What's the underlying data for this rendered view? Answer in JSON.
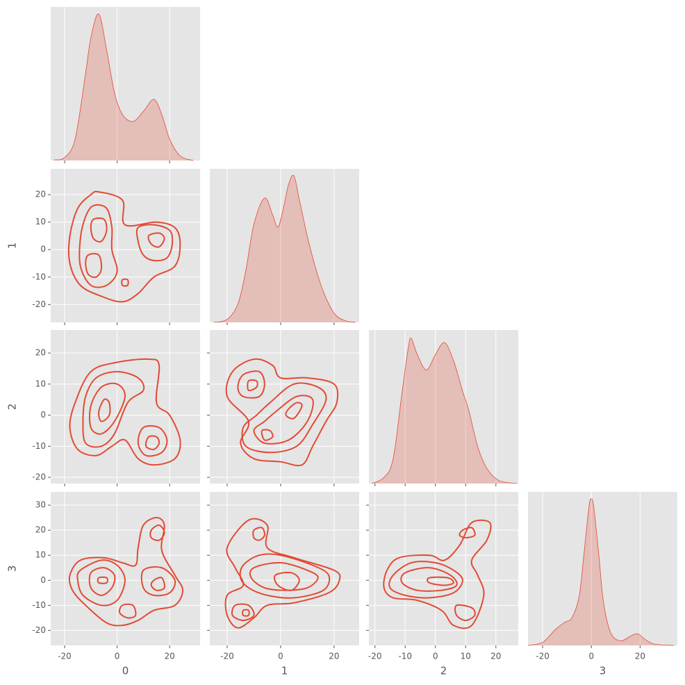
{
  "chart_data": {
    "type": "pairplot",
    "color": "#e24a33",
    "grid": true,
    "variables": [
      {
        "label": "0",
        "lim": [
          -25.3,
          31.6
        ],
        "xticks": [
          -20,
          0,
          20
        ]
      },
      {
        "label": "1",
        "lim": [
          -26.5,
          29.4
        ],
        "xticks": [
          -20,
          0,
          20
        ],
        "yticks": [
          -20,
          -10,
          0,
          10,
          20
        ]
      },
      {
        "label": "2",
        "lim": [
          -22,
          27.4
        ],
        "xticks": [
          -20,
          -10,
          0,
          10,
          20
        ],
        "yticks": [
          -20,
          -10,
          0,
          10,
          20
        ]
      },
      {
        "label": "3",
        "lim": [
          -26,
          35.3
        ],
        "xticks": [
          -20,
          0,
          20
        ],
        "yticks": [
          -20,
          -10,
          0,
          10,
          20,
          30
        ]
      }
    ],
    "density_lim": [
      0,
      0.05
    ],
    "diagonal": [
      {
        "x": [
          -24,
          -20,
          -16,
          -12,
          -10,
          -7,
          -4,
          -1,
          2,
          6,
          10,
          14,
          17,
          20,
          24,
          29
        ],
        "y": [
          0.0002,
          0.001,
          0.007,
          0.0285,
          0.04,
          0.0477,
          0.036,
          0.022,
          0.015,
          0.0127,
          0.016,
          0.0199,
          0.015,
          0.007,
          0.0015,
          0
        ]
      },
      {
        "x": [
          -25,
          -20,
          -16,
          -13,
          -10,
          -6,
          -3,
          -1,
          1,
          3,
          5,
          7,
          10,
          13,
          16,
          20,
          24,
          28
        ],
        "y": [
          0,
          0.001,
          0.006,
          0.017,
          0.032,
          0.0405,
          0.035,
          0.031,
          0.037,
          0.045,
          0.0477,
          0.04,
          0.028,
          0.018,
          0.01,
          0.003,
          0.0006,
          0
        ]
      },
      {
        "x": [
          -21,
          -17,
          -14,
          -11,
          -9,
          -8,
          -6,
          -3,
          0,
          3,
          6,
          9,
          11,
          14,
          17,
          21,
          27
        ],
        "y": [
          0,
          0.002,
          0.008,
          0.03,
          0.044,
          0.0473,
          0.042,
          0.037,
          0.042,
          0.0459,
          0.04,
          0.03,
          0.024,
          0.012,
          0.005,
          0.001,
          0
        ]
      },
      {
        "x": [
          -26,
          -20,
          -15,
          -11,
          -8,
          -5,
          -3,
          -1,
          0,
          1,
          3,
          5,
          8,
          12,
          16,
          19,
          22,
          26,
          34
        ],
        "y": [
          0,
          0.001,
          0.005,
          0.0075,
          0.009,
          0.016,
          0.03,
          0.045,
          0.0477,
          0.045,
          0.03,
          0.014,
          0.004,
          0.0015,
          0.003,
          0.0038,
          0.002,
          0.0004,
          0
        ]
      }
    ],
    "contours": [
      {
        "xvar": 0,
        "yvar": 1,
        "levels": [
          {
            "x": [
              -7,
              2,
              3,
              15,
              22,
              24,
              22,
              14,
              8,
              2,
              -6,
              -14,
              -18,
              -18,
              -15,
              -10
            ],
            "y": [
              21,
              18,
              9,
              10,
              8,
              2,
              -6,
              -10,
              -16,
              -19,
              -17,
              -13,
              -5,
              5,
              15,
              20
            ]
          },
          {
            "x": [
              -9,
              -4,
              -2,
              -2,
              0,
              -4,
              -10,
              -14,
              -14,
              -12
            ],
            "y": [
              16,
              15,
              8,
              0,
              -8,
              -13,
              -13,
              -6,
              4,
              12
            ]
          },
          {
            "x": [
              8,
              14,
              20,
              21,
              19,
              14,
              10,
              8
            ],
            "y": [
              8,
              9,
              7,
              2,
              -3,
              -4,
              -2,
              3
            ]
          },
          {
            "x": [
              -9,
              -5,
              -4,
              -6,
              -9,
              -10
            ],
            "y": [
              11,
              11,
              7,
              3,
              4,
              8
            ]
          },
          {
            "x": [
              -11,
              -7,
              -6,
              -8,
              -11,
              -12
            ],
            "y": [
              -2,
              -2,
              -7,
              -10,
              -9,
              -5
            ]
          },
          {
            "x": [
              12,
              16,
              18,
              16,
              13
            ],
            "y": [
              5,
              6,
              4,
              1,
              2
            ]
          },
          {
            "x": [
              2,
              4,
              4,
              2
            ],
            "y": [
              -11,
              -11,
              -13,
              -13
            ]
          }
        ]
      },
      {
        "xvar": 0,
        "yvar": 2,
        "levels": [
          {
            "x": [
              -10,
              0,
              12,
              16,
              15,
              20,
              24,
              22,
              14,
              8,
              3,
              -2,
              -8,
              -15,
              -18,
              -16
            ],
            "y": [
              14,
              17,
              18,
              16,
              4,
              0,
              -8,
              -14,
              -16,
              -14,
              -8,
              -10,
              -13,
              -11,
              -4,
              4
            ]
          },
          {
            "x": [
              -8,
              0,
              8,
              10,
              4,
              -1,
              -6,
              -12,
              -13,
              -12
            ],
            "y": [
              12,
              14,
              12,
              8,
              4,
              -6,
              -10,
              -9,
              -2,
              6
            ]
          },
          {
            "x": [
              -6,
              0,
              3,
              -1,
              -6,
              -10,
              -10
            ],
            "y": [
              9,
              10,
              6,
              -2,
              -6,
              -4,
              3
            ]
          },
          {
            "x": [
              -5,
              -3,
              -3,
              -6,
              -7
            ],
            "y": [
              5,
              4,
              0,
              -2,
              1
            ]
          },
          {
            "x": [
              10,
              16,
              19,
              17,
              11,
              8
            ],
            "y": [
              -4,
              -4,
              -8,
              -12,
              -13,
              -9
            ]
          },
          {
            "x": [
              12,
              15,
              16,
              14,
              11
            ],
            "y": [
              -7,
              -7,
              -9,
              -11,
              -10
            ]
          }
        ]
      },
      {
        "xvar": 1,
        "yvar": 2,
        "levels": [
          {
            "x": [
              -18,
              -10,
              -3,
              0,
              10,
              20,
              21,
              17,
              12,
              8,
              0,
              -10,
              -15,
              -12,
              -20
            ],
            "y": [
              14,
              18,
              16,
              12,
              12,
              10,
              4,
              -2,
              -10,
              -16,
              -15,
              -14,
              -9,
              -2,
              6
            ]
          },
          {
            "x": [
              -14,
              -8,
              -6,
              -8,
              -14,
              -16
            ],
            "y": [
              13,
              14,
              10,
              6,
              6,
              9
            ]
          },
          {
            "x": [
              -12,
              -9,
              -9,
              -12
            ],
            "y": [
              11,
              11,
              9,
              8
            ]
          },
          {
            "x": [
              -4,
              5,
              14,
              17,
              12,
              6,
              -4,
              -13,
              -14,
              -9
            ],
            "y": [
              4,
              10,
              9,
              5,
              -3,
              -10,
              -12,
              -10,
              -4,
              0
            ]
          },
          {
            "x": [
              -2,
              6,
              12,
              10,
              3,
              -6,
              -10,
              -6
            ],
            "y": [
              1,
              6,
              5,
              -2,
              -8,
              -9,
              -5,
              -2
            ]
          },
          {
            "x": [
              3,
              6,
              8,
              5,
              2
            ],
            "y": [
              2,
              4,
              3,
              -1,
              0
            ]
          },
          {
            "x": [
              -7,
              -4,
              -3,
              -6
            ],
            "y": [
              -5,
              -5,
              -7,
              -8
            ]
          }
        ]
      },
      {
        "xvar": 0,
        "yvar": 3,
        "levels": [
          {
            "x": [
              -18,
              -14,
              -5,
              2,
              7,
              8,
              10,
              15,
              18,
              17,
              22,
              25,
              22,
              14,
              8,
              2,
              -4,
              -12,
              -17
            ],
            "y": [
              2,
              8,
              9,
              7,
              6,
              13,
              22,
              25,
              22,
              12,
              2,
              -4,
              -10,
              -12,
              -16,
              -18,
              -17,
              -10,
              -4
            ]
          },
          {
            "x": [
              -14,
              -6,
              0,
              3,
              0,
              -6,
              -13,
              -15
            ],
            "y": [
              4,
              8,
              6,
              0,
              -8,
              -10,
              -6,
              0
            ]
          },
          {
            "x": [
              -10,
              -5,
              -1,
              -2,
              -6,
              -10
            ],
            "y": [
              3,
              5,
              2,
              -3,
              -6,
              -3
            ]
          },
          {
            "x": [
              -7,
              -4,
              -4,
              -7
            ],
            "y": [
              1,
              1,
              -1,
              -1
            ]
          },
          {
            "x": [
              10,
              17,
              22,
              20,
              14,
              10
            ],
            "y": [
              4,
              5,
              0,
              -5,
              -6,
              -3
            ]
          },
          {
            "x": [
              14,
              17,
              18,
              15,
              13
            ],
            "y": [
              0,
              1,
              -3,
              -4,
              -2
            ]
          },
          {
            "x": [
              13,
              16,
              18,
              16,
              13
            ],
            "y": [
              20,
              22,
              19,
              16,
              17
            ]
          },
          {
            "x": [
              2,
              6,
              7,
              4,
              1
            ],
            "y": [
              -10,
              -10,
              -14,
              -15,
              -13
            ]
          }
        ]
      },
      {
        "xvar": 1,
        "yvar": 3,
        "levels": [
          {
            "x": [
              -20,
              -12,
              -5,
              -5,
              5,
              20,
              22,
              18,
              5,
              -5,
              -10,
              -16,
              -20,
              -20,
              -14,
              -17
            ],
            "y": [
              13,
              24,
              22,
              13,
              9,
              4,
              0,
              -5,
              -9,
              -10,
              -15,
              -19,
              -14,
              -6,
              -2,
              5
            ]
          },
          {
            "x": [
              -10,
              -7,
              -6,
              -8,
              -10
            ],
            "y": [
              20,
              21,
              18,
              16,
              17
            ]
          },
          {
            "x": [
              -14,
              -8,
              0,
              12,
              18,
              16,
              5,
              -5,
              -12,
              -15
            ],
            "y": [
              6,
              10,
              10,
              6,
              2,
              -4,
              -7,
              -6,
              -3,
              1
            ]
          },
          {
            "x": [
              -10,
              0,
              10,
              14,
              10,
              2,
              -6,
              -11
            ],
            "y": [
              5,
              7,
              4,
              1,
              -3,
              -4,
              -3,
              1
            ]
          },
          {
            "x": [
              -2,
              4,
              7,
              4,
              -1
            ],
            "y": [
              2,
              3,
              0,
              -4,
              -2
            ]
          },
          {
            "x": [
              -17,
              -12,
              -10,
              -14,
              -18
            ],
            "y": [
              -10,
              -10,
              -14,
              -16,
              -14
            ]
          },
          {
            "x": [
              -14,
              -12,
              -12,
              -14
            ],
            "y": [
              -12,
              -12,
              -14,
              -14
            ]
          }
        ]
      },
      {
        "xvar": 2,
        "yvar": 3,
        "levels": [
          {
            "x": [
              -16,
              -12,
              -2,
              3,
              8,
              12,
              18,
              17,
              12,
              14,
              16,
              12,
              6,
              2,
              -6,
              -14,
              -17
            ],
            "y": [
              4,
              9,
              10,
              8,
              14,
              23,
              23,
              16,
              8,
              2,
              -6,
              -18,
              -18,
              -12,
              -8,
              -7,
              -3
            ]
          },
          {
            "x": [
              -14,
              -8,
              0,
              6,
              9,
              6,
              -2,
              -10,
              -15
            ],
            "y": [
              2,
              7,
              7,
              4,
              0,
              -5,
              -7,
              -6,
              -3
            ]
          },
          {
            "x": [
              -10,
              -2,
              5,
              7,
              2,
              -6,
              -11
            ],
            "y": [
              3,
              5,
              2,
              -2,
              -4,
              -4,
              -1
            ]
          },
          {
            "x": [
              -2,
              4,
              6,
              3,
              -2
            ],
            "y": [
              1,
              1,
              -1,
              -2,
              -1
            ]
          },
          {
            "x": [
              9,
              12,
              13,
              10,
              8
            ],
            "y": [
              20,
              21,
              18,
              17,
              18
            ]
          },
          {
            "x": [
              7,
              12,
              13,
              10,
              7
            ],
            "y": [
              -10,
              -11,
              -14,
              -16,
              -14
            ]
          }
        ]
      }
    ]
  }
}
